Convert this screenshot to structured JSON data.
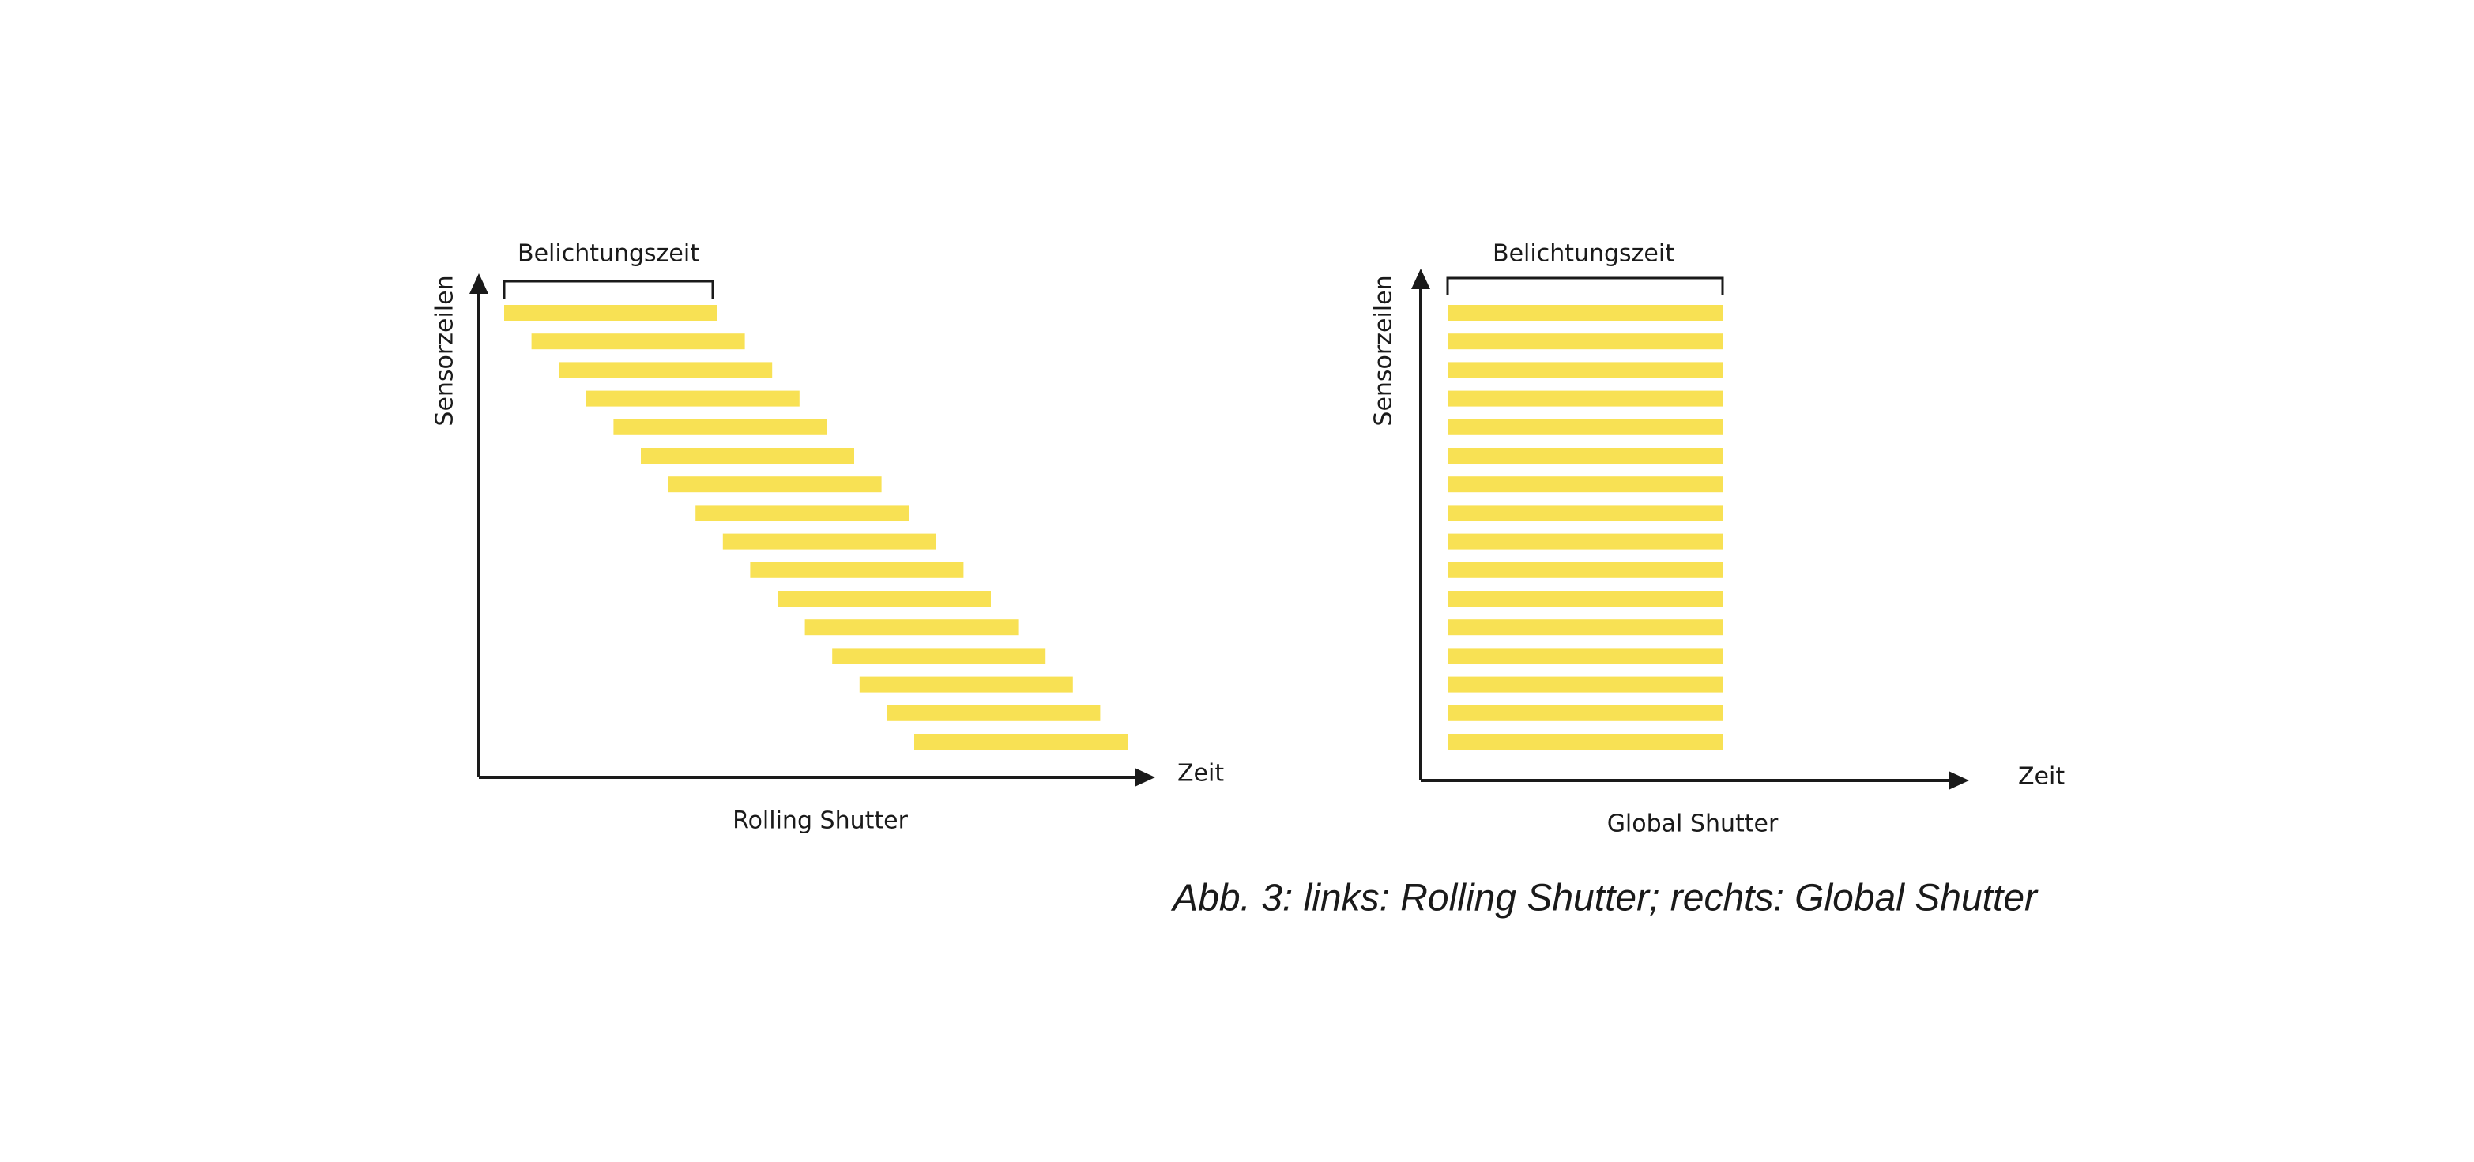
{
  "panels": [
    {
      "bracket_label": "Belichtungszeit",
      "y_label": "Sensorzeilen",
      "x_label": "Zeit",
      "caption": "Rolling Shutter"
    },
    {
      "bracket_label": "Belichtungszeit",
      "y_label": "Sensorzeilen",
      "x_label": "Zeit",
      "caption": "Global Shutter"
    }
  ],
  "figure_caption": "Abb. 3: links: Rolling Shutter; rechts: Global Shutter"
}
